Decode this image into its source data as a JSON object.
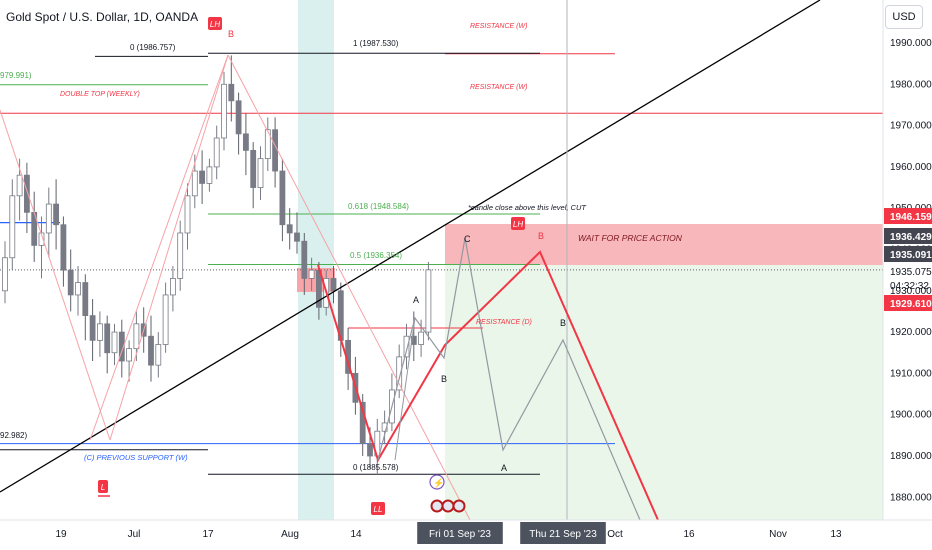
{
  "header": {
    "symbol_title": "Gold Spot / U.S. Dollar, 1D, OANDA",
    "currency_button": "USD"
  },
  "colors": {
    "bull": "#ffffff",
    "bear": "#787b86",
    "resistance": "#f23645",
    "support": "#2962ff",
    "fib": "#4caf50",
    "projection_red": "#f23645",
    "projection_gray": "#9598a1",
    "trendline": "#000000",
    "long_zone": "#e8f5e9",
    "short_zone": "#f8a5aa"
  },
  "chart_data": {
    "type": "candlestick",
    "symbol": "XAUUSD",
    "timeframe": "1D",
    "ylim": [
      1873,
      1995
    ],
    "x_ticks": [
      "19",
      "Jul",
      "17",
      "Aug",
      "14",
      "Fri 01 Sep '23",
      "Thu 21 Sep '23",
      "Oct",
      "16",
      "Nov",
      "13"
    ],
    "y_ticks": [
      "1990.000",
      "1980.000",
      "1970.000",
      "1960.000",
      "1950.000",
      "1940.000",
      "1930.000",
      "1920.000",
      "1910.000",
      "1900.000",
      "1890.000",
      "1880.000"
    ],
    "price_badges": [
      {
        "value": "1946.159",
        "kind": "red"
      },
      {
        "value": "1936.429",
        "kind": "dark"
      },
      {
        "value": "1935.091",
        "kind": "dark"
      },
      {
        "value": "1935.075",
        "kind": "plain"
      },
      {
        "value": "04:32:32",
        "kind": "plain"
      },
      {
        "value": "1929.610",
        "kind": "red"
      }
    ],
    "levels": [
      {
        "label": "RESISTANCE (W)",
        "price": 1987.4,
        "color": "red"
      },
      {
        "label": "RESISTANCE (W)",
        "price": 1973.0,
        "color": "red"
      },
      {
        "label": "DOUBLE TOP (WEEKLY)",
        "price": 1979.9,
        "color": "green"
      },
      {
        "label": "0 (1986.757)",
        "price": 1986.757,
        "color": "black"
      },
      {
        "label": "1 (1987.530)",
        "price": 1987.53,
        "color": "black"
      },
      {
        "label": "0.618 (1948.584)",
        "price": 1948.584,
        "color": "green"
      },
      {
        "label": "0.5 (1936.354)",
        "price": 1936.354,
        "color": "green"
      },
      {
        "label": "RESISTANCE (D)",
        "price": 1921.0,
        "color": "red"
      },
      {
        "label": "PREVIOUS SUPPORT (W)",
        "price": 1892.982,
        "color": "blue"
      },
      {
        "label": "0 (1885.578)",
        "price": 1885.578,
        "color": "black"
      }
    ],
    "annotations": {
      "left_clip_1": "979.991)",
      "left_clip_2": "92.982)",
      "cut_note": "*candle close above this level, CUT",
      "wait_note": "WAIT FOR PRICE ACTION",
      "support_label": "(C)  PREVIOUS SUPPORT (W)"
    },
    "wave_labels": [
      "A",
      "B",
      "C",
      "B",
      "A",
      "B",
      "B"
    ],
    "markers": [
      "LH",
      "LH",
      "LL",
      "L"
    ],
    "candles": [
      {
        "o": 1930,
        "h": 1942,
        "c": 1938,
        "l": 1927
      },
      {
        "o": 1938,
        "h": 1957,
        "c": 1953,
        "l": 1935
      },
      {
        "o": 1953,
        "h": 1962,
        "c": 1958,
        "l": 1947
      },
      {
        "o": 1958,
        "h": 1961,
        "c": 1949,
        "l": 1944
      },
      {
        "o": 1949,
        "h": 1954,
        "c": 1941,
        "l": 1937
      },
      {
        "o": 1941,
        "h": 1948,
        "c": 1944,
        "l": 1933
      },
      {
        "o": 1944,
        "h": 1955,
        "c": 1951,
        "l": 1938
      },
      {
        "o": 1951,
        "h": 1957,
        "c": 1946,
        "l": 1940
      },
      {
        "o": 1946,
        "h": 1948,
        "c": 1935,
        "l": 1931
      },
      {
        "o": 1935,
        "h": 1940,
        "c": 1929,
        "l": 1925
      },
      {
        "o": 1929,
        "h": 1936,
        "c": 1932,
        "l": 1924
      },
      {
        "o": 1932,
        "h": 1934,
        "c": 1924,
        "l": 1918
      },
      {
        "o": 1924,
        "h": 1928,
        "c": 1918,
        "l": 1913
      },
      {
        "o": 1918,
        "h": 1925,
        "c": 1922,
        "l": 1914
      },
      {
        "o": 1922,
        "h": 1924,
        "c": 1915,
        "l": 1910
      },
      {
        "o": 1915,
        "h": 1922,
        "c": 1920,
        "l": 1912
      },
      {
        "o": 1920,
        "h": 1923,
        "c": 1913,
        "l": 1909
      },
      {
        "o": 1913,
        "h": 1918,
        "c": 1916,
        "l": 1908
      },
      {
        "o": 1916,
        "h": 1925,
        "c": 1922,
        "l": 1913
      },
      {
        "o": 1922,
        "h": 1926,
        "c": 1919,
        "l": 1915
      },
      {
        "o": 1919,
        "h": 1924,
        "c": 1912,
        "l": 1908
      },
      {
        "o": 1912,
        "h": 1920,
        "c": 1917,
        "l": 1909
      },
      {
        "o": 1917,
        "h": 1932,
        "c": 1929,
        "l": 1915
      },
      {
        "o": 1929,
        "h": 1936,
        "c": 1933,
        "l": 1925
      },
      {
        "o": 1933,
        "h": 1947,
        "c": 1944,
        "l": 1930
      },
      {
        "o": 1944,
        "h": 1956,
        "c": 1953,
        "l": 1940
      },
      {
        "o": 1953,
        "h": 1963,
        "c": 1959,
        "l": 1950
      },
      {
        "o": 1959,
        "h": 1964,
        "c": 1956,
        "l": 1951
      },
      {
        "o": 1956,
        "h": 1962,
        "c": 1960,
        "l": 1954
      },
      {
        "o": 1960,
        "h": 1970,
        "c": 1967,
        "l": 1957
      },
      {
        "o": 1967,
        "h": 1983,
        "c": 1980,
        "l": 1964
      },
      {
        "o": 1980,
        "h": 1987,
        "c": 1976,
        "l": 1971
      },
      {
        "o": 1976,
        "h": 1978,
        "c": 1968,
        "l": 1963
      },
      {
        "o": 1968,
        "h": 1973,
        "c": 1964,
        "l": 1958
      },
      {
        "o": 1964,
        "h": 1966,
        "c": 1955,
        "l": 1950
      },
      {
        "o": 1955,
        "h": 1965,
        "c": 1962,
        "l": 1952
      },
      {
        "o": 1962,
        "h": 1972,
        "c": 1969,
        "l": 1959
      },
      {
        "o": 1969,
        "h": 1972,
        "c": 1959,
        "l": 1955
      },
      {
        "o": 1959,
        "h": 1962,
        "c": 1946,
        "l": 1942
      },
      {
        "o": 1946,
        "h": 1950,
        "c": 1944,
        "l": 1940
      },
      {
        "o": 1944,
        "h": 1949,
        "c": 1942,
        "l": 1939
      },
      {
        "o": 1942,
        "h": 1944,
        "c": 1933,
        "l": 1929
      },
      {
        "o": 1933,
        "h": 1938,
        "c": 1935,
        "l": 1930
      },
      {
        "o": 1935,
        "h": 1937,
        "c": 1926,
        "l": 1923
      },
      {
        "o": 1926,
        "h": 1935,
        "c": 1933,
        "l": 1924
      },
      {
        "o": 1933,
        "h": 1936,
        "c": 1930,
        "l": 1927
      },
      {
        "o": 1930,
        "h": 1932,
        "c": 1918,
        "l": 1914
      },
      {
        "o": 1918,
        "h": 1921,
        "c": 1910,
        "l": 1906
      },
      {
        "o": 1910,
        "h": 1914,
        "c": 1903,
        "l": 1900
      },
      {
        "o": 1903,
        "h": 1905,
        "c": 1893,
        "l": 1890
      },
      {
        "o": 1893,
        "h": 1897,
        "c": 1890,
        "l": 1887
      },
      {
        "o": 1890,
        "h": 1899,
        "c": 1896,
        "l": 1885.578
      },
      {
        "o": 1896,
        "h": 1901,
        "c": 1898,
        "l": 1893
      },
      {
        "o": 1898,
        "h": 1910,
        "c": 1906,
        "l": 1896
      },
      {
        "o": 1906,
        "h": 1917,
        "c": 1914,
        "l": 1904
      },
      {
        "o": 1914,
        "h": 1922,
        "c": 1919,
        "l": 1911
      },
      {
        "o": 1919,
        "h": 1925,
        "c": 1917,
        "l": 1913
      },
      {
        "o": 1917,
        "h": 1923,
        "c": 1920,
        "l": 1914
      },
      {
        "o": 1920,
        "h": 1937,
        "c": 1935.075,
        "l": 1918
      }
    ]
  }
}
